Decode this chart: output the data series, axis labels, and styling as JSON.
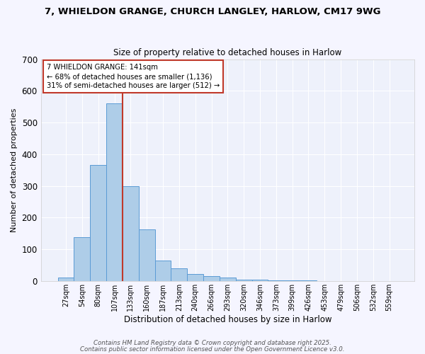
{
  "title1": "7, WHIELDON GRANGE, CHURCH LANGLEY, HARLOW, CM17 9WG",
  "title2": "Size of property relative to detached houses in Harlow",
  "xlabel": "Distribution of detached houses by size in Harlow",
  "ylabel": "Number of detached properties",
  "bar_labels": [
    "27sqm",
    "54sqm",
    "80sqm",
    "107sqm",
    "133sqm",
    "160sqm",
    "187sqm",
    "213sqm",
    "240sqm",
    "266sqm",
    "293sqm",
    "320sqm",
    "346sqm",
    "373sqm",
    "399sqm",
    "426sqm",
    "453sqm",
    "479sqm",
    "506sqm",
    "532sqm",
    "559sqm"
  ],
  "bar_heights": [
    10,
    137,
    365,
    560,
    298,
    162,
    65,
    40,
    22,
    15,
    10,
    5,
    3,
    2,
    1,
    1,
    0,
    0,
    0,
    0,
    0
  ],
  "bar_color": "#aecde8",
  "bar_edge_color": "#5b9bd5",
  "fig_facecolor": "#f5f5ff",
  "ax_facecolor": "#eef1fb",
  "grid_color": "#ffffff",
  "annotation_text": "7 WHIELDON GRANGE: 141sqm\n← 68% of detached houses are smaller (1,136)\n31% of semi-detached houses are larger (512) →",
  "vline_position": 3.5,
  "vline_color": "#c0392b",
  "ylim": [
    0,
    700
  ],
  "yticks": [
    0,
    100,
    200,
    300,
    400,
    500,
    600,
    700
  ],
  "footnote1": "Contains HM Land Registry data © Crown copyright and database right 2025.",
  "footnote2": "Contains public sector information licensed under the Open Government Licence v3.0."
}
